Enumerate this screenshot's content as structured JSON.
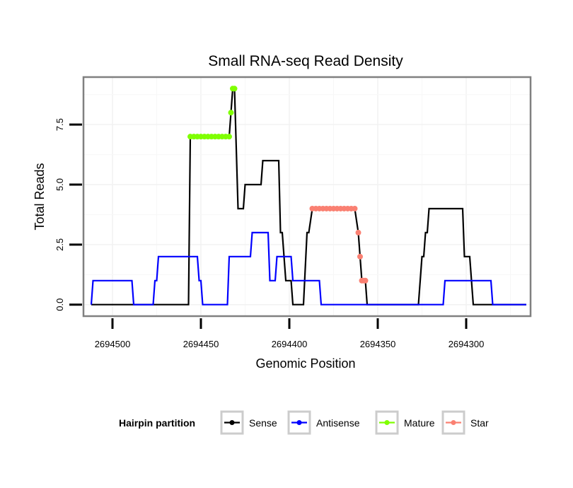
{
  "chart_data": {
    "type": "line",
    "title": "Small RNA-seq Read Density",
    "xlabel": "Genomic Position",
    "ylabel": "Total Reads",
    "x_reversed": true,
    "xlim": [
      2694516,
      2694264
    ],
    "ylim": [
      -0.45,
      9.45
    ],
    "x_ticks": [
      2694500,
      2694450,
      2694400,
      2694350,
      2694300
    ],
    "x_tick_labels": [
      "2694500",
      "2694450",
      "2694400",
      "2694350",
      "2694300"
    ],
    "y_ticks": [
      0,
      2.5,
      5,
      7.5
    ],
    "y_tick_labels": [
      "0.0",
      "2.5",
      "5.0",
      "7.5"
    ],
    "grid": true,
    "legend": {
      "title": "Hairpin partition",
      "placement": "bottom",
      "entries": [
        {
          "label": "Sense",
          "color": "#000000"
        },
        {
          "label": "Antisense",
          "color": "#0000ff"
        },
        {
          "label": "Mature",
          "color": "#7fff00"
        },
        {
          "label": "Star",
          "color": "#fa8072"
        }
      ]
    },
    "series": [
      {
        "name": "Sense",
        "color": "#000000",
        "points": [
          [
            2694512,
            0
          ],
          [
            2694457,
            0
          ],
          [
            2694456,
            7
          ],
          [
            2694434,
            7
          ],
          [
            2694433,
            8
          ],
          [
            2694432,
            9
          ],
          [
            2694431,
            9
          ],
          [
            2694429,
            4
          ],
          [
            2694426,
            4
          ],
          [
            2694425,
            5
          ],
          [
            2694416,
            5
          ],
          [
            2694415,
            6
          ],
          [
            2694406,
            6
          ],
          [
            2694405,
            3
          ],
          [
            2694404,
            3
          ],
          [
            2694402,
            1
          ],
          [
            2694399,
            1
          ],
          [
            2694398,
            0
          ],
          [
            2694392,
            0
          ],
          [
            2694390,
            3
          ],
          [
            2694389,
            3
          ],
          [
            2694387,
            4
          ],
          [
            2694363,
            4
          ],
          [
            2694361,
            3
          ],
          [
            2694360,
            2
          ],
          [
            2694359,
            1
          ],
          [
            2694357,
            1
          ],
          [
            2694356,
            0
          ],
          [
            2694327,
            0
          ],
          [
            2694325,
            2
          ],
          [
            2694324,
            2
          ],
          [
            2694323,
            3
          ],
          [
            2694322,
            3
          ],
          [
            2694321,
            4
          ],
          [
            2694302,
            4
          ],
          [
            2694301,
            2
          ],
          [
            2694298,
            2
          ],
          [
            2694296,
            0
          ],
          [
            2694266,
            0
          ]
        ]
      },
      {
        "name": "Antisense",
        "color": "#0000ff",
        "points": [
          [
            2694512,
            0
          ],
          [
            2694511,
            1
          ],
          [
            2694489,
            1
          ],
          [
            2694488,
            0
          ],
          [
            2694477,
            0
          ],
          [
            2694476,
            1
          ],
          [
            2694475,
            1
          ],
          [
            2694474,
            2
          ],
          [
            2694452,
            2
          ],
          [
            2694451,
            1
          ],
          [
            2694450,
            1
          ],
          [
            2694449,
            0
          ],
          [
            2694435,
            0
          ],
          [
            2694434,
            2
          ],
          [
            2694422,
            2
          ],
          [
            2694421,
            3
          ],
          [
            2694412,
            3
          ],
          [
            2694411,
            1
          ],
          [
            2694408,
            1
          ],
          [
            2694407,
            2
          ],
          [
            2694399,
            2
          ],
          [
            2694398,
            1
          ],
          [
            2694383,
            1
          ],
          [
            2694382,
            0
          ],
          [
            2694346,
            0
          ],
          [
            2694345,
            0
          ],
          [
            2694313,
            0
          ],
          [
            2694312,
            1
          ],
          [
            2694286,
            1
          ],
          [
            2694285,
            0
          ],
          [
            2694266,
            0
          ]
        ]
      },
      {
        "name": "Mature",
        "color": "#7fff00",
        "markers": [
          [
            2694456,
            7
          ],
          [
            2694454,
            7
          ],
          [
            2694452,
            7
          ],
          [
            2694450,
            7
          ],
          [
            2694448,
            7
          ],
          [
            2694446,
            7
          ],
          [
            2694444,
            7
          ],
          [
            2694442,
            7
          ],
          [
            2694440,
            7
          ],
          [
            2694438,
            7
          ],
          [
            2694436,
            7
          ],
          [
            2694434,
            7
          ],
          [
            2694433,
            8
          ],
          [
            2694432,
            9
          ],
          [
            2694431,
            9
          ]
        ]
      },
      {
        "name": "Star",
        "color": "#fa8072",
        "markers": [
          [
            2694387,
            4
          ],
          [
            2694385,
            4
          ],
          [
            2694383,
            4
          ],
          [
            2694381,
            4
          ],
          [
            2694379,
            4
          ],
          [
            2694377,
            4
          ],
          [
            2694375,
            4
          ],
          [
            2694373,
            4
          ],
          [
            2694371,
            4
          ],
          [
            2694369,
            4
          ],
          [
            2694367,
            4
          ],
          [
            2694365,
            4
          ],
          [
            2694363,
            4
          ],
          [
            2694361,
            3
          ],
          [
            2694360,
            2
          ],
          [
            2694359,
            1
          ],
          [
            2694358,
            1
          ],
          [
            2694357,
            1
          ]
        ]
      }
    ]
  }
}
